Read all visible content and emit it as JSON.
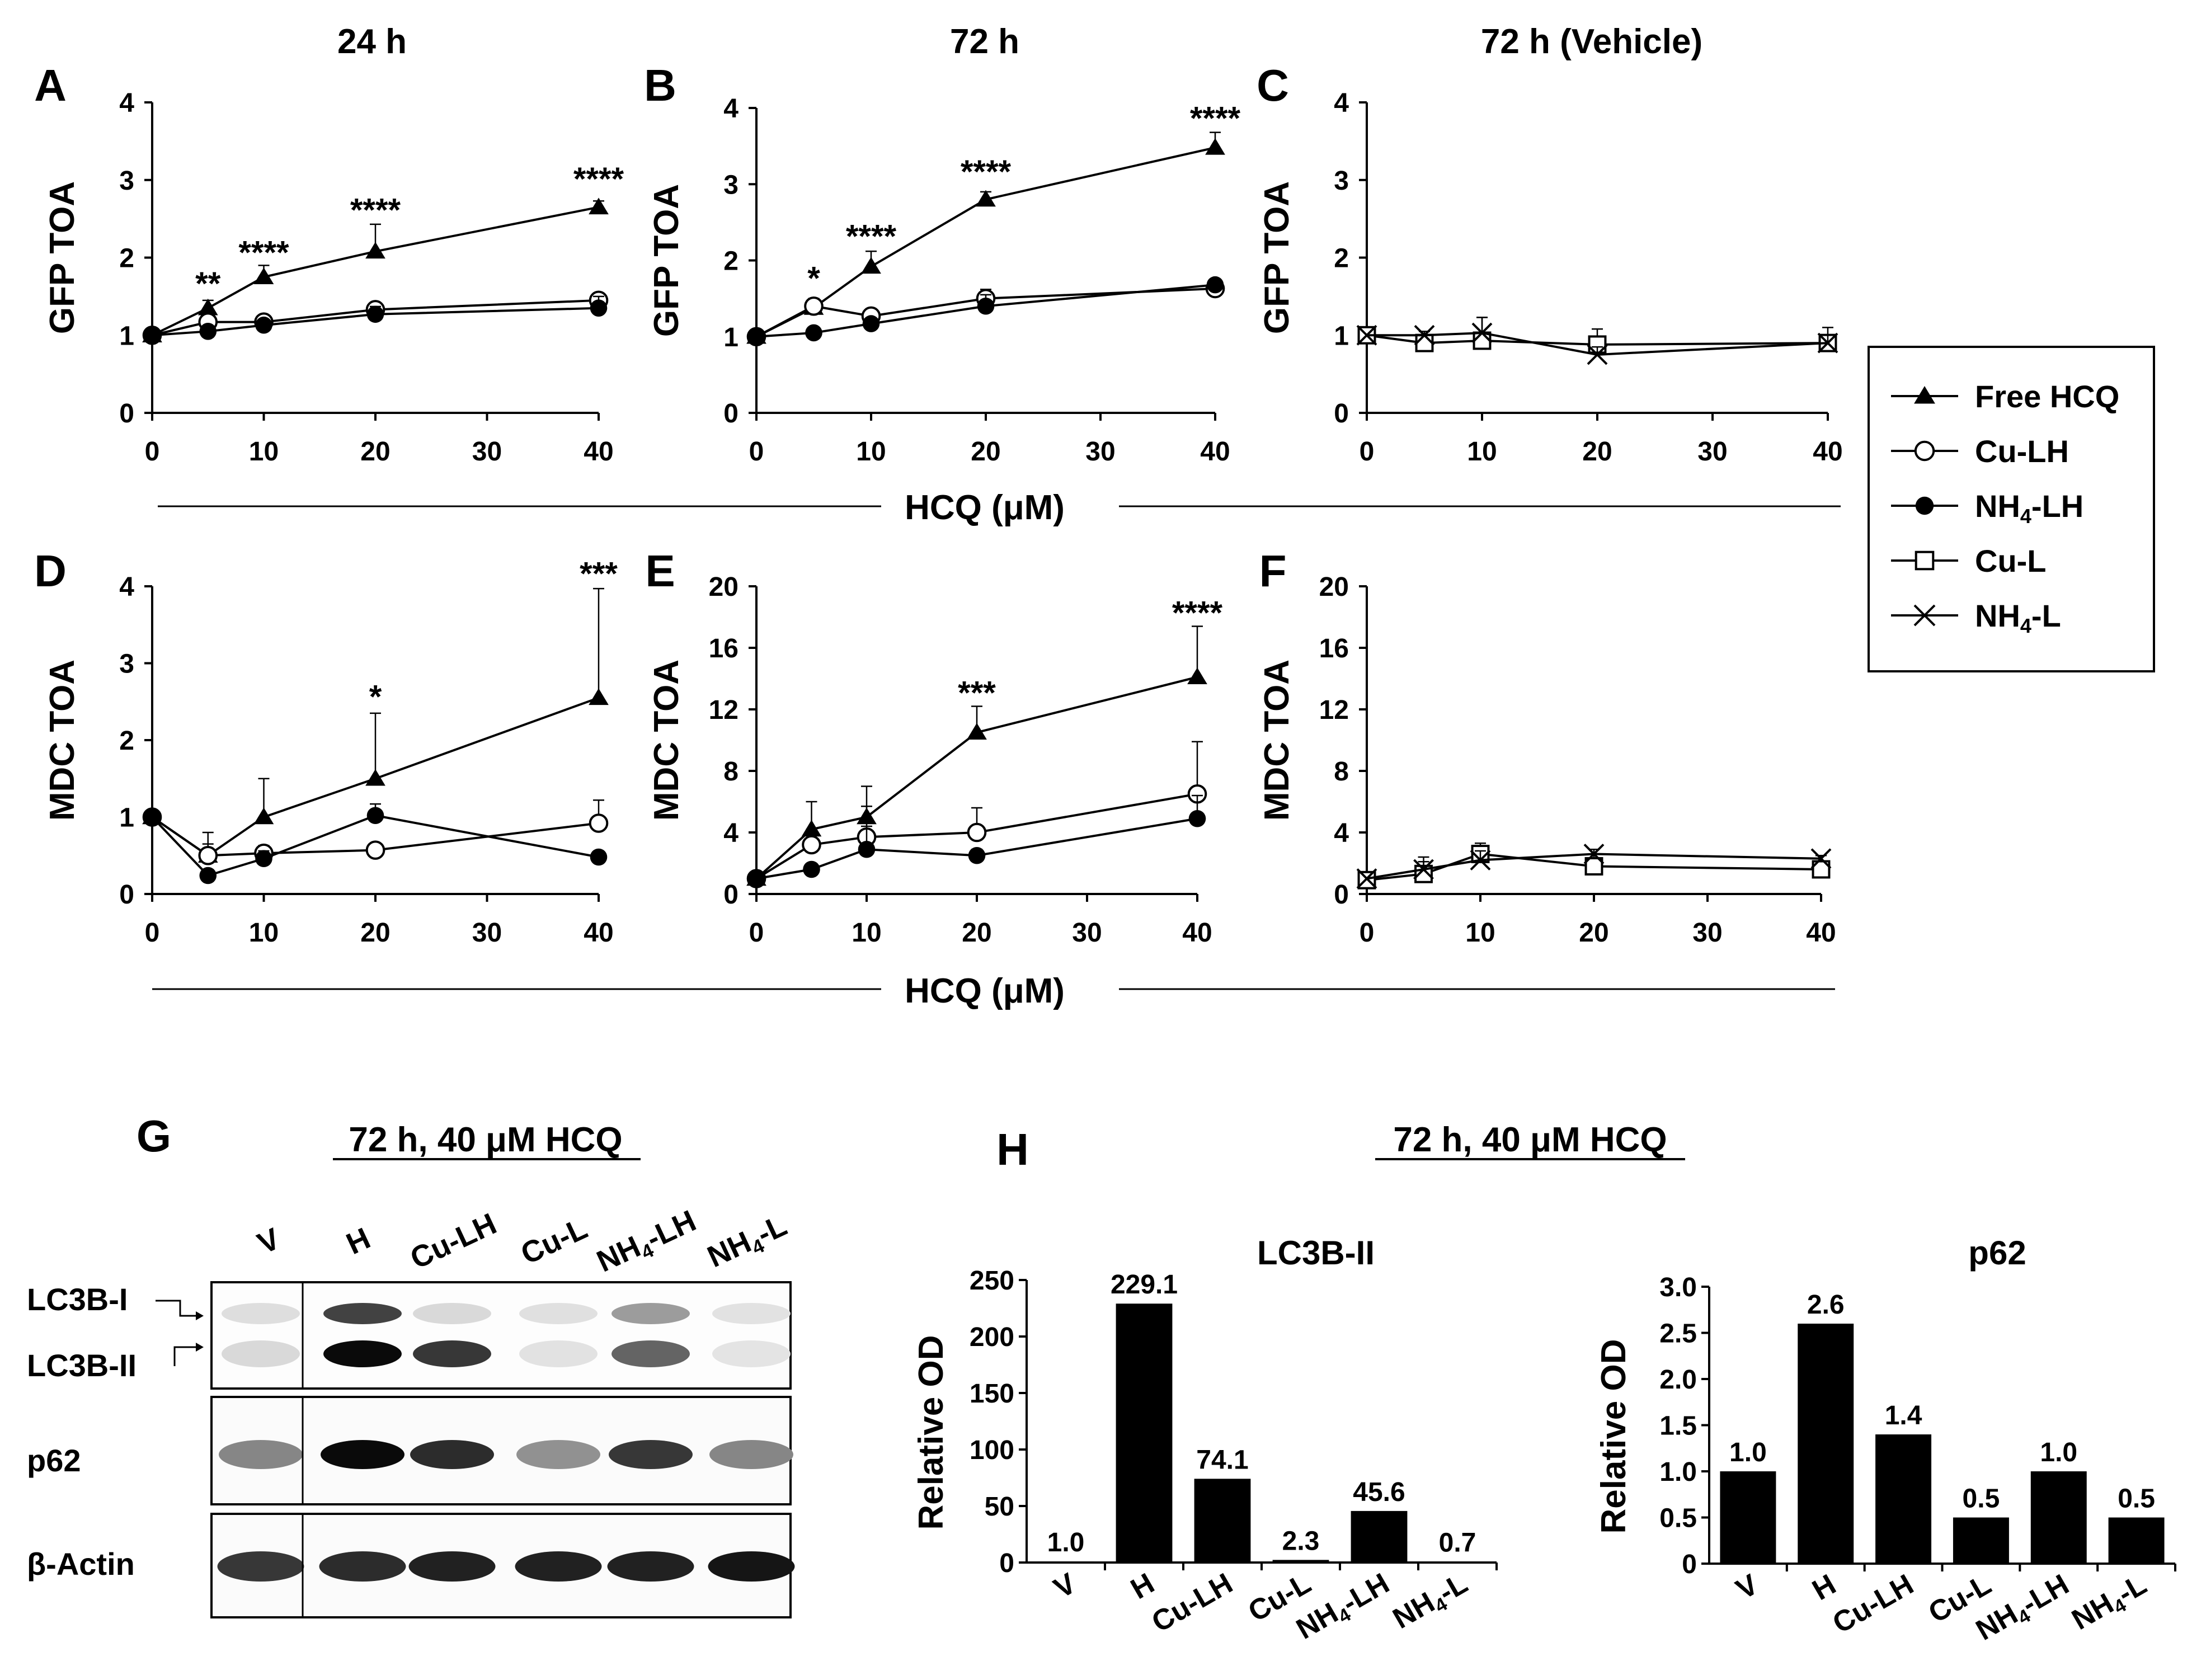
{
  "figure": {
    "col_titles": [
      "24 h",
      "72 h",
      "72 h (Vehicle)"
    ],
    "x_axis_label": "HCQ (μM)",
    "x_ticks": [
      0,
      10,
      20,
      30,
      40
    ],
    "legend": [
      {
        "label": "Free HCQ",
        "marker": "filled-triangle"
      },
      {
        "label": "Cu-LH",
        "marker": "open-circle"
      },
      {
        "label": "NH4-LH",
        "marker": "filled-circle"
      },
      {
        "label": "Cu-L",
        "marker": "open-square"
      },
      {
        "label": "NH4-L",
        "marker": "cross"
      }
    ],
    "blot": {
      "letter": "G",
      "title": "72 h, 40 μM HCQ",
      "lanes": [
        "V",
        "H",
        "Cu-LH",
        "Cu-L",
        "NH4-LH",
        "NH4-L"
      ],
      "rows": [
        "LC3B-I",
        "LC3B-II",
        "p62",
        "β-Actin"
      ]
    },
    "h_title": "72 h, 40 μM HCQ",
    "h_letter": "H"
  },
  "chart_data": [
    {
      "id": "A",
      "type": "line",
      "title": "24 h",
      "ylabel": "GFP TOA",
      "xlabel": "HCQ (μM)",
      "x": [
        0,
        5,
        10,
        20,
        40
      ],
      "xlim": [
        0,
        40
      ],
      "ylim": [
        0,
        4
      ],
      "yticks": [
        0,
        1,
        2,
        3,
        4
      ],
      "series": [
        {
          "name": "Free HCQ",
          "values": [
            1.0,
            1.35,
            1.75,
            2.08,
            2.65
          ],
          "err": [
            0,
            0.1,
            0.15,
            0.35,
            0.08
          ]
        },
        {
          "name": "Cu-LH",
          "values": [
            1.0,
            1.17,
            1.17,
            1.33,
            1.45
          ],
          "err": [
            0,
            0.05,
            0.06,
            0.08,
            0.05
          ]
        },
        {
          "name": "NH4-LH",
          "values": [
            1.0,
            1.05,
            1.13,
            1.27,
            1.35
          ],
          "err": [
            0,
            0.05,
            0.06,
            0.1,
            0.15
          ]
        }
      ],
      "annotations": [
        {
          "x": 5,
          "text": "**",
          "y": 1.65
        },
        {
          "x": 10,
          "text": "****",
          "y": 2.05
        },
        {
          "x": 20,
          "text": "****",
          "y": 2.6
        },
        {
          "x": 40,
          "text": "****",
          "y": 3.0
        }
      ]
    },
    {
      "id": "B",
      "type": "line",
      "title": "72 h",
      "ylabel": "GFP TOA",
      "xlabel": "HCQ (μM)",
      "x": [
        0,
        5,
        10,
        20,
        40
      ],
      "xlim": [
        0,
        40
      ],
      "ylim": [
        0,
        4
      ],
      "yticks": [
        0,
        1,
        2,
        3,
        4
      ],
      "series": [
        {
          "name": "Free HCQ",
          "values": [
            1.0,
            1.38,
            1.92,
            2.8,
            3.48
          ],
          "err": [
            0,
            0.08,
            0.2,
            0.1,
            0.2
          ]
        },
        {
          "name": "Cu-LH",
          "values": [
            1.0,
            1.4,
            1.27,
            1.5,
            1.63
          ],
          "err": [
            0,
            0.1,
            0.08,
            0.12,
            0.05
          ]
        },
        {
          "name": "NH4-LH",
          "values": [
            1.0,
            1.05,
            1.17,
            1.4,
            1.68
          ],
          "err": [
            0,
            0.05,
            0.06,
            0.15,
            0.05
          ]
        }
      ],
      "annotations": [
        {
          "x": 5,
          "text": "*",
          "y": 1.75
        },
        {
          "x": 10,
          "text": "****",
          "y": 2.3
        },
        {
          "x": 20,
          "text": "****",
          "y": 3.15
        },
        {
          "x": 40,
          "text": "****",
          "y": 3.85
        }
      ]
    },
    {
      "id": "C",
      "type": "line",
      "title": "72 h (Vehicle)",
      "ylabel": "GFP TOA",
      "xlabel": "HCQ (μM)",
      "x": [
        0,
        5,
        10,
        20,
        40
      ],
      "xlim": [
        0,
        40
      ],
      "ylim": [
        0,
        4
      ],
      "yticks": [
        0,
        1,
        2,
        3,
        4
      ],
      "series": [
        {
          "name": "Cu-L",
          "values": [
            1.0,
            0.9,
            0.93,
            0.88,
            0.9
          ],
          "err": [
            0,
            0.1,
            0.3,
            0.2,
            0.2
          ]
        },
        {
          "name": "NH4-L",
          "values": [
            1.0,
            1.0,
            1.03,
            0.75,
            0.9
          ],
          "err": [
            0,
            0.05,
            0.2,
            0.1,
            0.1
          ]
        }
      ],
      "annotations": []
    },
    {
      "id": "D",
      "type": "line",
      "title": "",
      "ylabel": "MDC TOA",
      "xlabel": "HCQ (μM)",
      "x": [
        0,
        5,
        10,
        20,
        40
      ],
      "xlim": [
        0,
        40
      ],
      "ylim": [
        0,
        4
      ],
      "yticks": [
        0,
        1,
        2,
        3,
        4
      ],
      "series": [
        {
          "name": "Free HCQ",
          "values": [
            1.0,
            0.5,
            1.0,
            1.5,
            2.55
          ],
          "err": [
            0,
            0.3,
            0.5,
            0.85,
            1.42
          ]
        },
        {
          "name": "Cu-LH",
          "values": [
            1.0,
            0.5,
            0.53,
            0.57,
            0.92
          ],
          "err": [
            0,
            0.15,
            0.1,
            0.05,
            0.3
          ]
        },
        {
          "name": "NH4-LH",
          "values": [
            1.0,
            0.24,
            0.46,
            1.02,
            0.48
          ],
          "err": [
            0,
            0.05,
            0.1,
            0.15,
            0.05
          ]
        }
      ],
      "annotations": [
        {
          "x": 20,
          "text": "*",
          "y": 2.55
        },
        {
          "x": 40,
          "text": "***",
          "y": 4.15
        }
      ]
    },
    {
      "id": "E",
      "type": "line",
      "title": "",
      "ylabel": "MDC TOA",
      "xlabel": "HCQ (μM)",
      "x": [
        0,
        5,
        10,
        20,
        40
      ],
      "xlim": [
        0,
        40
      ],
      "ylim": [
        0,
        20
      ],
      "yticks": [
        0,
        4,
        8,
        12,
        16,
        20
      ],
      "series": [
        {
          "name": "Free HCQ",
          "values": [
            1.0,
            4.2,
            5.0,
            10.5,
            14.1
          ],
          "err": [
            0,
            1.8,
            2.0,
            1.7,
            3.3
          ]
        },
        {
          "name": "Cu-LH",
          "values": [
            1.0,
            3.2,
            3.7,
            4.0,
            6.5
          ],
          "err": [
            0,
            1.0,
            2.0,
            1.6,
            3.4
          ]
        },
        {
          "name": "NH4-LH",
          "values": [
            1.0,
            1.6,
            2.9,
            2.5,
            4.9
          ],
          "err": [
            0,
            0.2,
            1.5,
            0.4,
            1.5
          ]
        }
      ],
      "annotations": [
        {
          "x": 20,
          "text": "***",
          "y": 13.0
        },
        {
          "x": 40,
          "text": "****",
          "y": 18.2
        }
      ]
    },
    {
      "id": "F",
      "type": "line",
      "title": "",
      "ylabel": "MDC TOA",
      "xlabel": "HCQ (μM)",
      "x": [
        0,
        5,
        10,
        20,
        40
      ],
      "xlim": [
        0,
        40
      ],
      "ylim": [
        0,
        20
      ],
      "yticks": [
        0,
        4,
        8,
        12,
        16,
        20
      ],
      "series": [
        {
          "name": "Cu-L",
          "values": [
            0.9,
            1.3,
            2.6,
            1.8,
            1.6
          ],
          "err": [
            0,
            0.8,
            0.7,
            0.8,
            0.2
          ]
        },
        {
          "name": "NH4-L",
          "values": [
            1.0,
            1.6,
            2.2,
            2.6,
            2.3
          ],
          "err": [
            0,
            0.8,
            0.6,
            0.3,
            0.2
          ]
        }
      ],
      "annotations": []
    },
    {
      "id": "H1",
      "type": "bar",
      "title": "LC3B-II",
      "ylabel": "Relative OD",
      "categories": [
        "V",
        "H",
        "Cu-LH",
        "Cu-L",
        "NH4-LH",
        "NH4-L"
      ],
      "values": [
        1.0,
        229.1,
        74.1,
        2.3,
        45.6,
        0.7
      ],
      "labels": [
        "1.0",
        "229.1",
        "74.1",
        "2.3",
        "45.6",
        "0.7"
      ],
      "ylim": [
        0,
        250
      ],
      "yticks": [
        0,
        50,
        100,
        150,
        200,
        250
      ],
      "label_offset": [
        0,
        0,
        0,
        0,
        0,
        0
      ]
    },
    {
      "id": "H2",
      "type": "bar",
      "title": "p62",
      "ylabel": "Relative OD",
      "categories": [
        "V",
        "H",
        "Cu-LH",
        "Cu-L",
        "NH4-LH",
        "NH4-L"
      ],
      "values": [
        1.0,
        2.6,
        1.4,
        0.5,
        1.0,
        0.5
      ],
      "labels": [
        "1.0",
        "2.6",
        "1.4",
        "0.5",
        "1.0",
        "0.5"
      ],
      "ylim": [
        0,
        3.0
      ],
      "yticks": [
        "0",
        "0.5",
        "1.0",
        "1.5",
        "2.0",
        "2.5",
        "3.0"
      ],
      "label_offset": [
        0,
        0,
        0,
        0,
        0,
        0
      ]
    }
  ]
}
